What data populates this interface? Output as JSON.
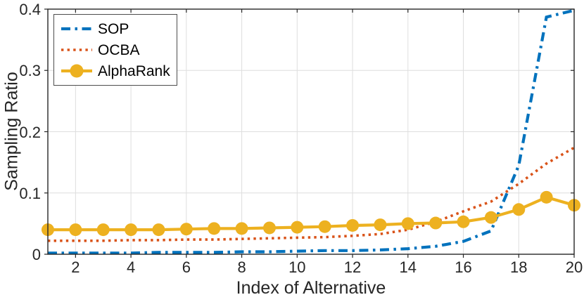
{
  "chart_data": {
    "type": "line",
    "title": "",
    "xlabel": "Index of Alternative",
    "ylabel": "Sampling Ratio",
    "xlim": [
      1,
      20
    ],
    "ylim": [
      0,
      0.4
    ],
    "grid": true,
    "legend_position": "top-left",
    "axes_color": "#262626",
    "grid_color": "#dedede",
    "xticks": [
      2,
      4,
      6,
      8,
      10,
      12,
      14,
      16,
      18,
      20
    ],
    "xtick_labels": [
      "2",
      "4",
      "6",
      "8",
      "10",
      "12",
      "14",
      "16",
      "18",
      "20"
    ],
    "yticks": [
      0,
      0.1,
      0.2,
      0.3,
      0.4
    ],
    "ytick_labels": [
      "0",
      "0.1",
      "0.2",
      "0.3",
      "0.4"
    ],
    "x": [
      1,
      2,
      3,
      4,
      5,
      6,
      7,
      8,
      9,
      10,
      11,
      12,
      13,
      14,
      15,
      16,
      17,
      18,
      19,
      20
    ],
    "series": [
      {
        "name": "SOP",
        "color": "#0072BD",
        "style": "dashdot",
        "marker": "none",
        "values": [
          0.002,
          0.002,
          0.002,
          0.002,
          0.003,
          0.003,
          0.003,
          0.004,
          0.004,
          0.005,
          0.006,
          0.006,
          0.007,
          0.009,
          0.013,
          0.021,
          0.038,
          0.145,
          0.387,
          0.398
        ]
      },
      {
        "name": "OCBA",
        "color": "#D95319",
        "style": "dotted",
        "marker": "none",
        "values": [
          0.022,
          0.022,
          0.022,
          0.023,
          0.023,
          0.024,
          0.024,
          0.025,
          0.026,
          0.027,
          0.028,
          0.03,
          0.033,
          0.04,
          0.053,
          0.07,
          0.086,
          0.115,
          0.148,
          0.174
        ]
      },
      {
        "name": "AlphaRank",
        "color": "#EDB120",
        "style": "solid",
        "marker": "circle",
        "values": [
          0.04,
          0.04,
          0.04,
          0.04,
          0.04,
          0.041,
          0.042,
          0.042,
          0.043,
          0.044,
          0.045,
          0.047,
          0.048,
          0.05,
          0.051,
          0.053,
          0.06,
          0.073,
          0.093,
          0.08
        ]
      }
    ]
  }
}
